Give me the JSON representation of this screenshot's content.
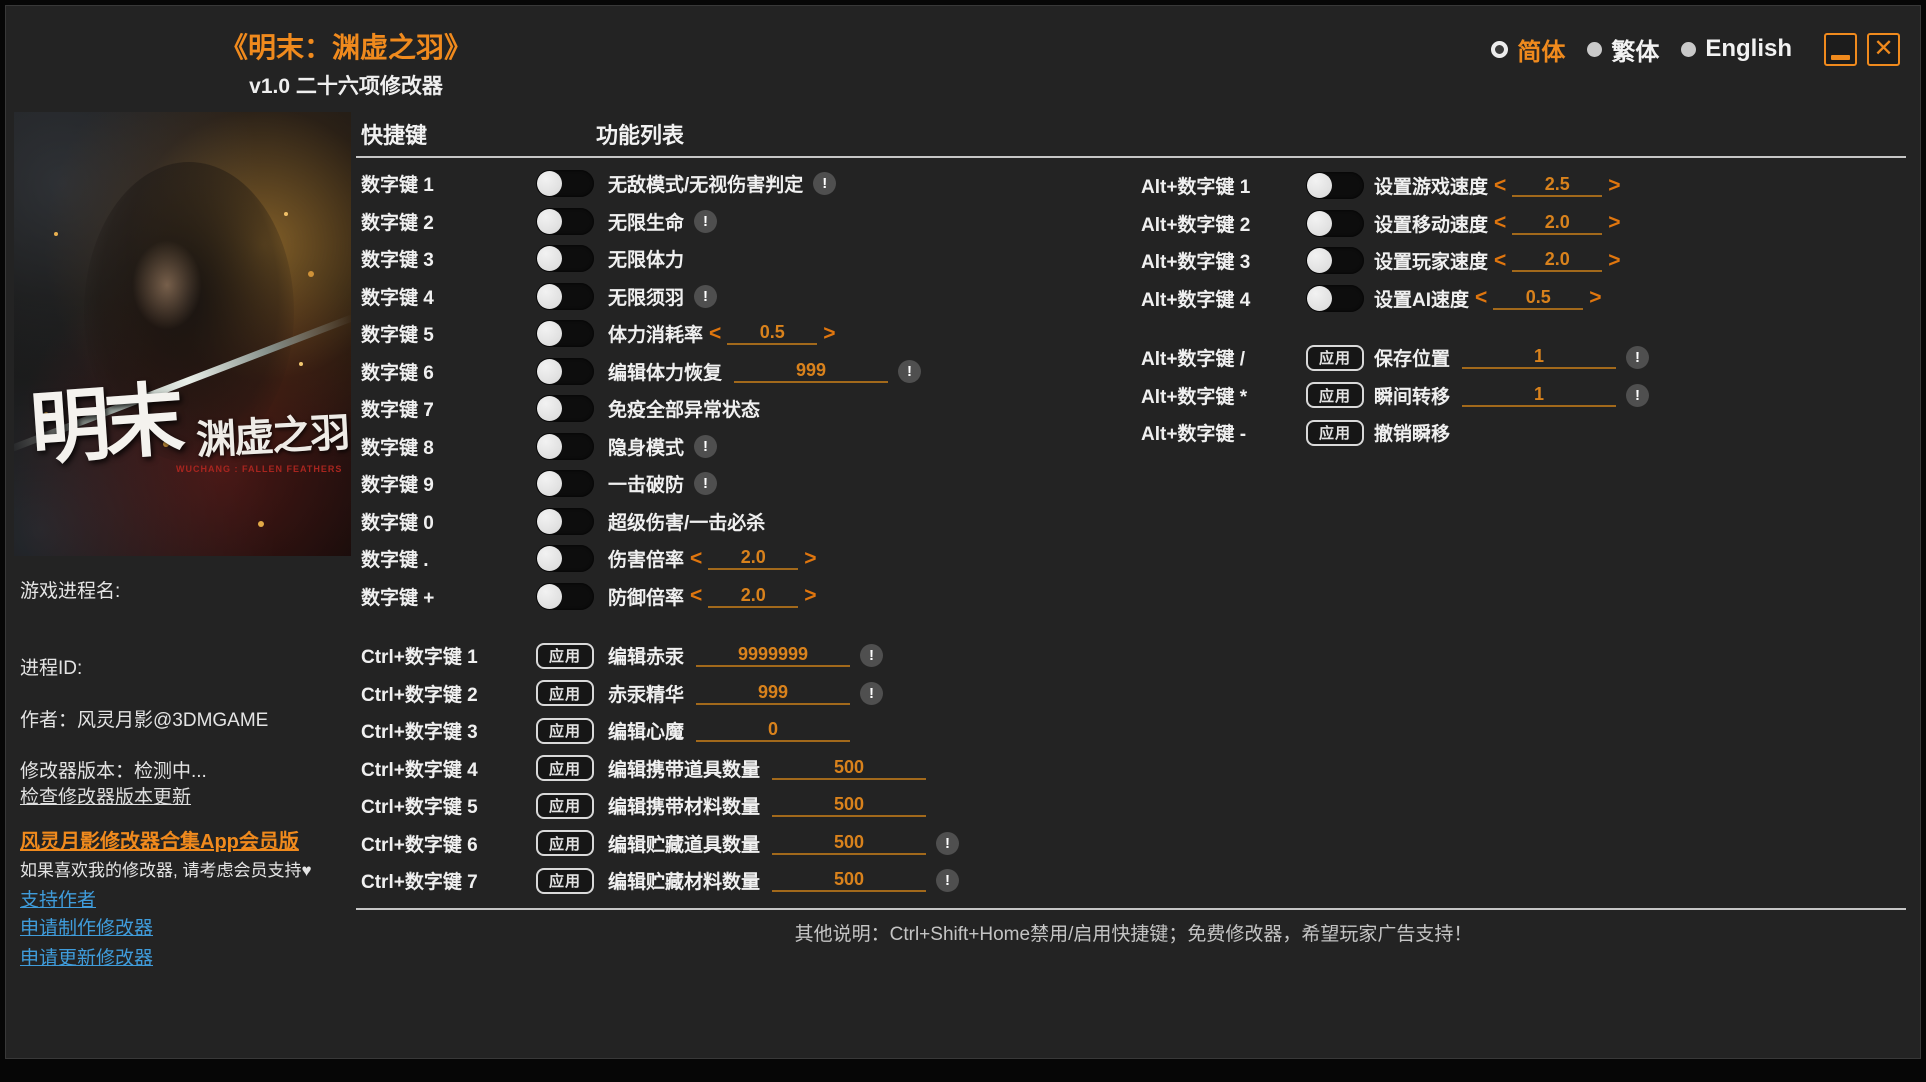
{
  "colors": {
    "accent_orange": "#f08a1d",
    "value_orange": "#d9821c",
    "link_blue": "#3f9cdb",
    "background": "#232323",
    "art_caption_red": "#a8251f"
  },
  "titlebar": {
    "title": "《明末：渊虚之羽》",
    "subtitle": "v1.0 二十六项修改器",
    "languages": [
      {
        "label": "简体",
        "selected": true
      },
      {
        "label": "繁体",
        "selected": false
      },
      {
        "label": "English",
        "selected": false
      }
    ],
    "close_glyph": "✕"
  },
  "sidebar": {
    "art": {
      "title_main": "明末",
      "title_side": "渊虚之羽",
      "caption": "WUCHANG : FALLEN FEATHERS"
    },
    "process_name_label": "游戏进程名:",
    "process_id_label": "进程ID:",
    "author_line": "作者：风灵月影@3DMGAME",
    "version_line": "修改器版本：检测中...",
    "check_update_link": "检查修改器版本更新",
    "vip_link": "风灵月影修改器合集App会员版",
    "support_note": "如果喜欢我的修改器, 请考虑会员支持♥",
    "links": [
      "支持作者",
      "申请制作修改器",
      "申请更新修改器"
    ]
  },
  "main": {
    "hotkey_header": "快捷键",
    "feature_header": "功能列表",
    "apply_label": "应用",
    "arrow_left": "<",
    "arrow_right": ">",
    "warning_glyph": "!",
    "left_toggle_rows": [
      {
        "hotkey": "数字键 1",
        "control": "toggle",
        "label": "无敌模式/无视伤害判定",
        "warning": true
      },
      {
        "hotkey": "数字键 2",
        "control": "toggle",
        "label": "无限生命",
        "warning": true
      },
      {
        "hotkey": "数字键 3",
        "control": "toggle",
        "label": "无限体力"
      },
      {
        "hotkey": "数字键 4",
        "control": "toggle",
        "label": "无限须羽",
        "warning": true
      },
      {
        "hotkey": "数字键 5",
        "control": "toggle",
        "label": "体力消耗率",
        "value": "0.5",
        "arrows": true
      },
      {
        "hotkey": "数字键 6",
        "control": "toggle",
        "label": "编辑体力恢复",
        "value": "999",
        "warning": true
      },
      {
        "hotkey": "数字键 7",
        "control": "toggle",
        "label": "免疫全部异常状态"
      },
      {
        "hotkey": "数字键 8",
        "control": "toggle",
        "label": "隐身模式",
        "warning": true
      },
      {
        "hotkey": "数字键 9",
        "control": "toggle",
        "label": "一击破防",
        "warning": true
      },
      {
        "hotkey": "数字键 0",
        "control": "toggle",
        "label": "超级伤害/一击必杀"
      },
      {
        "hotkey": "数字键 .",
        "control": "toggle",
        "label": "伤害倍率",
        "value": "2.0",
        "arrows": true
      },
      {
        "hotkey": "数字键 +",
        "control": "toggle",
        "label": "防御倍率",
        "value": "2.0",
        "arrows": true
      }
    ],
    "ctrl_rows": [
      {
        "hotkey": "Ctrl+数字键 1",
        "control": "apply",
        "label": "编辑赤汞",
        "value": "9999999",
        "warning": true
      },
      {
        "hotkey": "Ctrl+数字键 2",
        "control": "apply",
        "label": "赤汞精华",
        "value": "999",
        "warning": true
      },
      {
        "hotkey": "Ctrl+数字键 3",
        "control": "apply",
        "label": "编辑心魔",
        "value": "0"
      },
      {
        "hotkey": "Ctrl+数字键 4",
        "control": "apply",
        "label": "编辑携带道具数量",
        "value": "500"
      },
      {
        "hotkey": "Ctrl+数字键 5",
        "control": "apply",
        "label": "编辑携带材料数量",
        "value": "500"
      },
      {
        "hotkey": "Ctrl+数字键 6",
        "control": "apply",
        "label": "编辑贮藏道具数量",
        "value": "500",
        "warning": true
      },
      {
        "hotkey": "Ctrl+数字键 7",
        "control": "apply",
        "label": "编辑贮藏材料数量",
        "value": "500",
        "warning": true
      }
    ],
    "alt_toggle_rows": [
      {
        "hotkey": "Alt+数字键 1",
        "control": "toggle",
        "label": "设置游戏速度",
        "value": "2.5",
        "arrows": true
      },
      {
        "hotkey": "Alt+数字键 2",
        "control": "toggle",
        "label": "设置移动速度",
        "value": "2.0",
        "arrows": true
      },
      {
        "hotkey": "Alt+数字键 3",
        "control": "toggle",
        "label": "设置玩家速度",
        "value": "2.0",
        "arrows": true
      },
      {
        "hotkey": "Alt+数字键 4",
        "control": "toggle",
        "label": "设置AI速度",
        "value": "0.5",
        "arrows": true
      }
    ],
    "alt_apply_rows": [
      {
        "hotkey": "Alt+数字键 /",
        "control": "apply",
        "label": "保存位置",
        "value": "1",
        "warning": true
      },
      {
        "hotkey": "Alt+数字键 *",
        "control": "apply",
        "label": "瞬间转移",
        "value": "1",
        "warning": true
      },
      {
        "hotkey": "Alt+数字键 -",
        "control": "apply",
        "label": "撤销瞬移"
      }
    ],
    "footer_note": "其他说明：Ctrl+Shift+Home禁用/启用快捷键；免费修改器，希望玩家广告支持！"
  }
}
